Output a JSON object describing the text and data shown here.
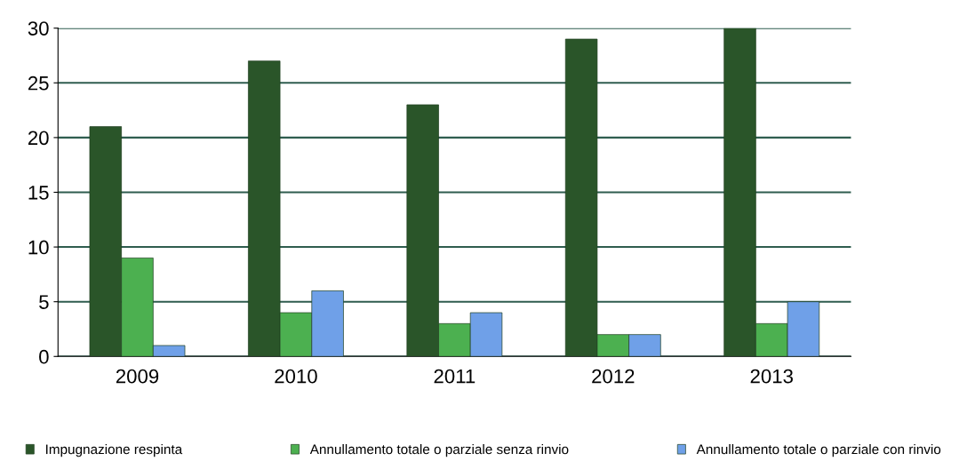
{
  "chart_data": {
    "type": "bar",
    "categories": [
      "2009",
      "2010",
      "2011",
      "2012",
      "2013"
    ],
    "series": [
      {
        "name": "Impugnazione respinta",
        "color": "#2a5529",
        "values": [
          21,
          27,
          23,
          29,
          30
        ]
      },
      {
        "name": "Annullamento totale o parziale senza rinvio",
        "color": "#4cb050",
        "values": [
          9,
          4,
          3,
          2,
          3
        ]
      },
      {
        "name": "Annullamento totale o parziale con rinvio",
        "color": "#6fa0e8",
        "values": [
          1,
          6,
          4,
          2,
          5
        ]
      }
    ],
    "ylim": [
      0,
      30
    ],
    "yticks": [
      0,
      5,
      10,
      15,
      20,
      25,
      30
    ],
    "grid": "y",
    "legend": "bottom"
  }
}
